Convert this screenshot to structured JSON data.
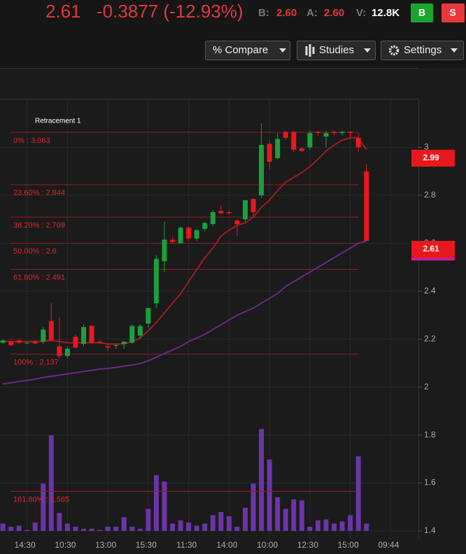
{
  "toolbar": {
    "last": "2.61",
    "change": "-0.3877 (-12.93%)",
    "bid_label": "B:",
    "bid": "2.60",
    "ask_label": "A:",
    "ask": "2.60",
    "vol_label": "V:",
    "vol": "12.8K",
    "buy": "B",
    "sell": "S",
    "compare": "% Compare",
    "studies": "Studies",
    "settings": "Settings"
  },
  "chart_data": {
    "type": "candlestick",
    "categories": [
      null,
      null,
      null,
      "14:30",
      null,
      null,
      null,
      null,
      "10:30",
      null,
      null,
      null,
      null,
      "13:00",
      null,
      null,
      null,
      null,
      "15:30",
      null,
      null,
      null,
      null,
      "11:30",
      null,
      null,
      null,
      null,
      "14:00",
      null,
      null,
      null,
      null,
      "10:00",
      null,
      null,
      null,
      null,
      "12:30",
      null,
      null,
      null,
      null,
      "15:00",
      null,
      null,
      null,
      null,
      "09:44"
    ],
    "open": [
      2.185,
      2.19,
      2.195,
      2.185,
      2.19,
      2.19,
      2.275,
      2.17,
      2.13,
      2.21,
      2.18,
      2.255,
      2.19,
      2.17,
      2.175,
      2.18,
      2.185,
      2.215,
      2.265,
      2.35,
      2.525,
      2.615,
      2.6,
      2.665,
      2.62,
      2.66,
      2.68,
      2.735,
      2.73,
      2.695,
      2.7,
      2.785,
      2.8,
      3.015,
      2.955,
      3.065,
      3.065,
      2.995,
      3.0,
      3.065,
      3.045,
      3.065,
      3.06,
      3.065,
      3.04,
      2.9,
      null,
      null,
      null
    ],
    "high": [
      2.2,
      2.195,
      2.2,
      2.19,
      2.195,
      2.25,
      2.35,
      2.29,
      2.17,
      2.22,
      2.26,
      2.26,
      2.195,
      2.18,
      2.18,
      2.19,
      2.26,
      2.26,
      2.33,
      2.55,
      2.69,
      2.63,
      2.67,
      2.67,
      2.66,
      2.69,
      2.74,
      2.76,
      2.74,
      2.7,
      2.78,
      2.79,
      3.1,
      3.03,
      3.06,
      3.07,
      3.07,
      3.0,
      3.07,
      3.07,
      3.07,
      3.07,
      3.07,
      3.07,
      3.06,
      2.93,
      null,
      null,
      null
    ],
    "low": [
      2.18,
      2.17,
      2.18,
      2.18,
      2.18,
      2.18,
      2.19,
      2.12,
      2.12,
      2.16,
      2.17,
      2.18,
      2.18,
      2.15,
      2.16,
      2.16,
      2.18,
      2.2,
      2.25,
      2.33,
      2.48,
      2.6,
      2.6,
      2.61,
      2.61,
      2.65,
      2.67,
      2.72,
      2.72,
      2.63,
      2.69,
      2.71,
      2.79,
      2.91,
      2.95,
      3.03,
      2.98,
      2.98,
      2.99,
      3.05,
      3.0,
      3.05,
      3.05,
      3.04,
      2.98,
      2.61,
      null,
      null,
      null
    ],
    "close": [
      2.195,
      2.175,
      2.185,
      2.185,
      2.182,
      2.24,
      2.195,
      2.13,
      2.16,
      2.165,
      2.25,
      2.185,
      2.185,
      2.165,
      2.175,
      2.19,
      2.255,
      2.255,
      2.33,
      2.535,
      2.615,
      2.605,
      2.665,
      2.62,
      2.655,
      2.685,
      2.73,
      2.725,
      2.725,
      2.68,
      2.78,
      2.73,
      3.01,
      2.94,
      3.035,
      3.04,
      2.99,
      2.985,
      3.06,
      3.06,
      3.06,
      3.06,
      3.065,
      3.06,
      3.0,
      2.61,
      null,
      null,
      null
    ],
    "up_color": "#1e9e3c",
    "down_color": "#e8181d",
    "volume": [
      7,
      4,
      5,
      1,
      8,
      45,
      91,
      17,
      7,
      4,
      2,
      2,
      1,
      4,
      4,
      13,
      4,
      2,
      21,
      53,
      47,
      7,
      10,
      8,
      5,
      7,
      15,
      18,
      14,
      4,
      22,
      45,
      97,
      68,
      32,
      21,
      30,
      29,
      4,
      10,
      11,
      7,
      9,
      15,
      71,
      7,
      null,
      null,
      null
    ],
    "volume_color": "#6b35a6",
    "y2lim": [
      0,
      100
    ],
    "lines": [
      {
        "color": "#a01c20",
        "values": [
          2.19,
          2.19,
          2.19,
          2.19,
          2.19,
          2.19,
          2.195,
          2.19,
          2.185,
          2.185,
          2.185,
          2.185,
          2.185,
          2.18,
          2.18,
          2.18,
          2.19,
          2.205,
          2.235,
          2.27,
          2.31,
          2.35,
          2.39,
          2.44,
          2.49,
          2.54,
          2.58,
          2.63,
          2.655,
          2.675,
          2.685,
          2.71,
          2.75,
          2.78,
          2.82,
          2.855,
          2.875,
          2.895,
          2.92,
          2.95,
          2.985,
          3.01,
          3.03,
          3.04,
          3.04,
          2.99,
          null,
          null,
          null
        ]
      },
      {
        "color": "#6a2a8c",
        "values": [
          2.013,
          2.018,
          2.023,
          2.028,
          2.033,
          2.04,
          2.045,
          2.05,
          2.055,
          2.06,
          2.065,
          2.07,
          2.075,
          2.078,
          2.082,
          2.087,
          2.092,
          2.098,
          2.11,
          2.125,
          2.14,
          2.155,
          2.17,
          2.19,
          2.205,
          2.22,
          2.24,
          2.26,
          2.28,
          2.3,
          2.315,
          2.33,
          2.35,
          2.37,
          2.39,
          2.42,
          2.44,
          2.46,
          2.48,
          2.5,
          2.52,
          2.54,
          2.56,
          2.58,
          2.6,
          2.61,
          null,
          null,
          null
        ]
      }
    ],
    "fibonacci": {
      "title": "Retracement 1",
      "color": "#8e1f22",
      "text_color": "#e0262a",
      "levels": [
        {
          "value": 3.063,
          "label": "0% : 3.063"
        },
        {
          "value": 2.844,
          "label": "23.60% : 2.844"
        },
        {
          "value": 2.709,
          "label": "38.20% : 2.709"
        },
        {
          "value": 2.6,
          "label": "50.00% : 2.6"
        },
        {
          "value": 2.491,
          "label": "61.80% : 2.491"
        },
        {
          "value": 2.137,
          "label": "100% : 2.137"
        },
        {
          "value": 1.565,
          "label": "161.80% : 1.565"
        }
      ]
    },
    "ylim": [
      1.365,
      3.2
    ],
    "yticks": [
      1.4,
      1.6,
      1.8,
      2,
      2.2,
      2.4,
      2.6,
      2.8,
      3
    ],
    "grid": true
  }
}
